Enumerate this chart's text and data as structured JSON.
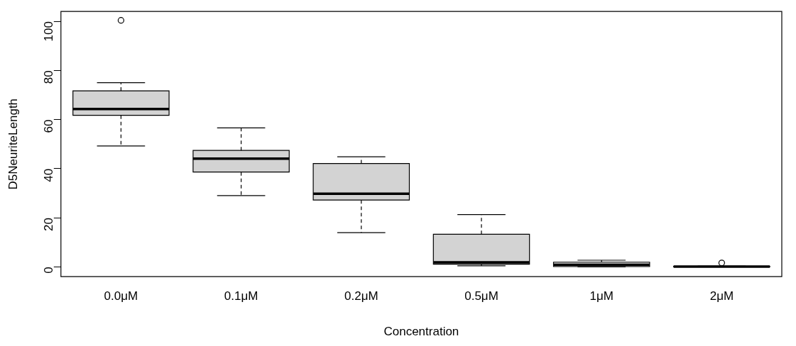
{
  "chart_data": {
    "type": "box",
    "xlabel": "Concentration",
    "ylabel": "D5NeuriteLength",
    "categories": [
      "0.0μM",
      "0.1μM",
      "0.2μM",
      "0.5μM",
      "1μM",
      "2μM"
    ],
    "color": "#d3d3d3",
    "boxes": [
      {
        "low": 49.2,
        "q1": 61.7,
        "median": 64.3,
        "q3": 71.7,
        "high": 75.0,
        "outliers": [
          100.4
        ]
      },
      {
        "low": 29.0,
        "q1": 38.6,
        "median": 44.1,
        "q3": 47.4,
        "high": 56.6
      },
      {
        "low": 13.9,
        "q1": 27.2,
        "median": 29.8,
        "q3": 42.1,
        "high": 44.8
      },
      {
        "low": 0.4,
        "q1": 1.1,
        "median": 1.8,
        "q3": 13.3,
        "high": 21.3
      },
      {
        "low": 0,
        "q1": 0.1,
        "median": 0.8,
        "q3": 1.9,
        "high": 2.7
      },
      {
        "low": 0,
        "q1": 0,
        "median": 0.1,
        "q3": 0.2,
        "high": 0.3,
        "outliers": [
          1.6
        ]
      }
    ],
    "ylim": [
      -4,
      104
    ],
    "yticks": [
      0,
      20,
      40,
      60,
      80,
      100
    ],
    "grid": false,
    "legend": false
  }
}
